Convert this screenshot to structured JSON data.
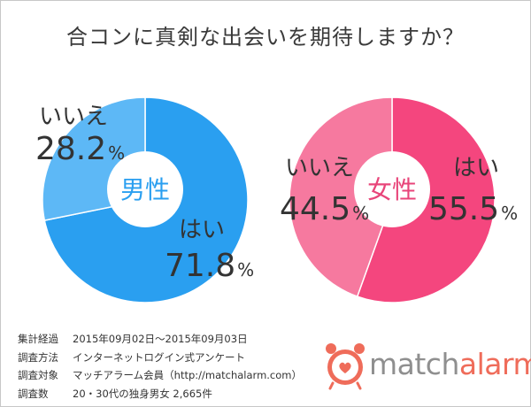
{
  "title": "合コンに真剣な出会いを期待しますか？",
  "chart_data": [
    {
      "type": "pie",
      "center_label": "男性",
      "slices": [
        {
          "label": "はい",
          "value": 71.8,
          "color": "#2a9ff0"
        },
        {
          "label": "いいえ",
          "value": 28.2,
          "color": "#5db8f6"
        }
      ]
    },
    {
      "type": "pie",
      "center_label": "女性",
      "slices": [
        {
          "label": "はい",
          "value": 55.5,
          "color": "#f4467e"
        },
        {
          "label": "いいえ",
          "value": 44.5,
          "color": "#f6799f"
        }
      ]
    }
  ],
  "meta": [
    {
      "key": "集計経過",
      "value": "2015年09月02日〜2015年09月03日"
    },
    {
      "key": "調査方法",
      "value": "インターネットログイン式アンケート"
    },
    {
      "key": "調査対象",
      "value": "マッチアラーム会員（http://matchalarm.com）"
    },
    {
      "key": "調査数",
      "value": "20・30代の独身男女 2,665件"
    }
  ],
  "logo": {
    "part1": "match",
    "part2": "alarm"
  },
  "colors": {
    "male_center": "#2a9ff0",
    "female_center": "#e8457a",
    "logo_accent": "#ef6c5a"
  }
}
